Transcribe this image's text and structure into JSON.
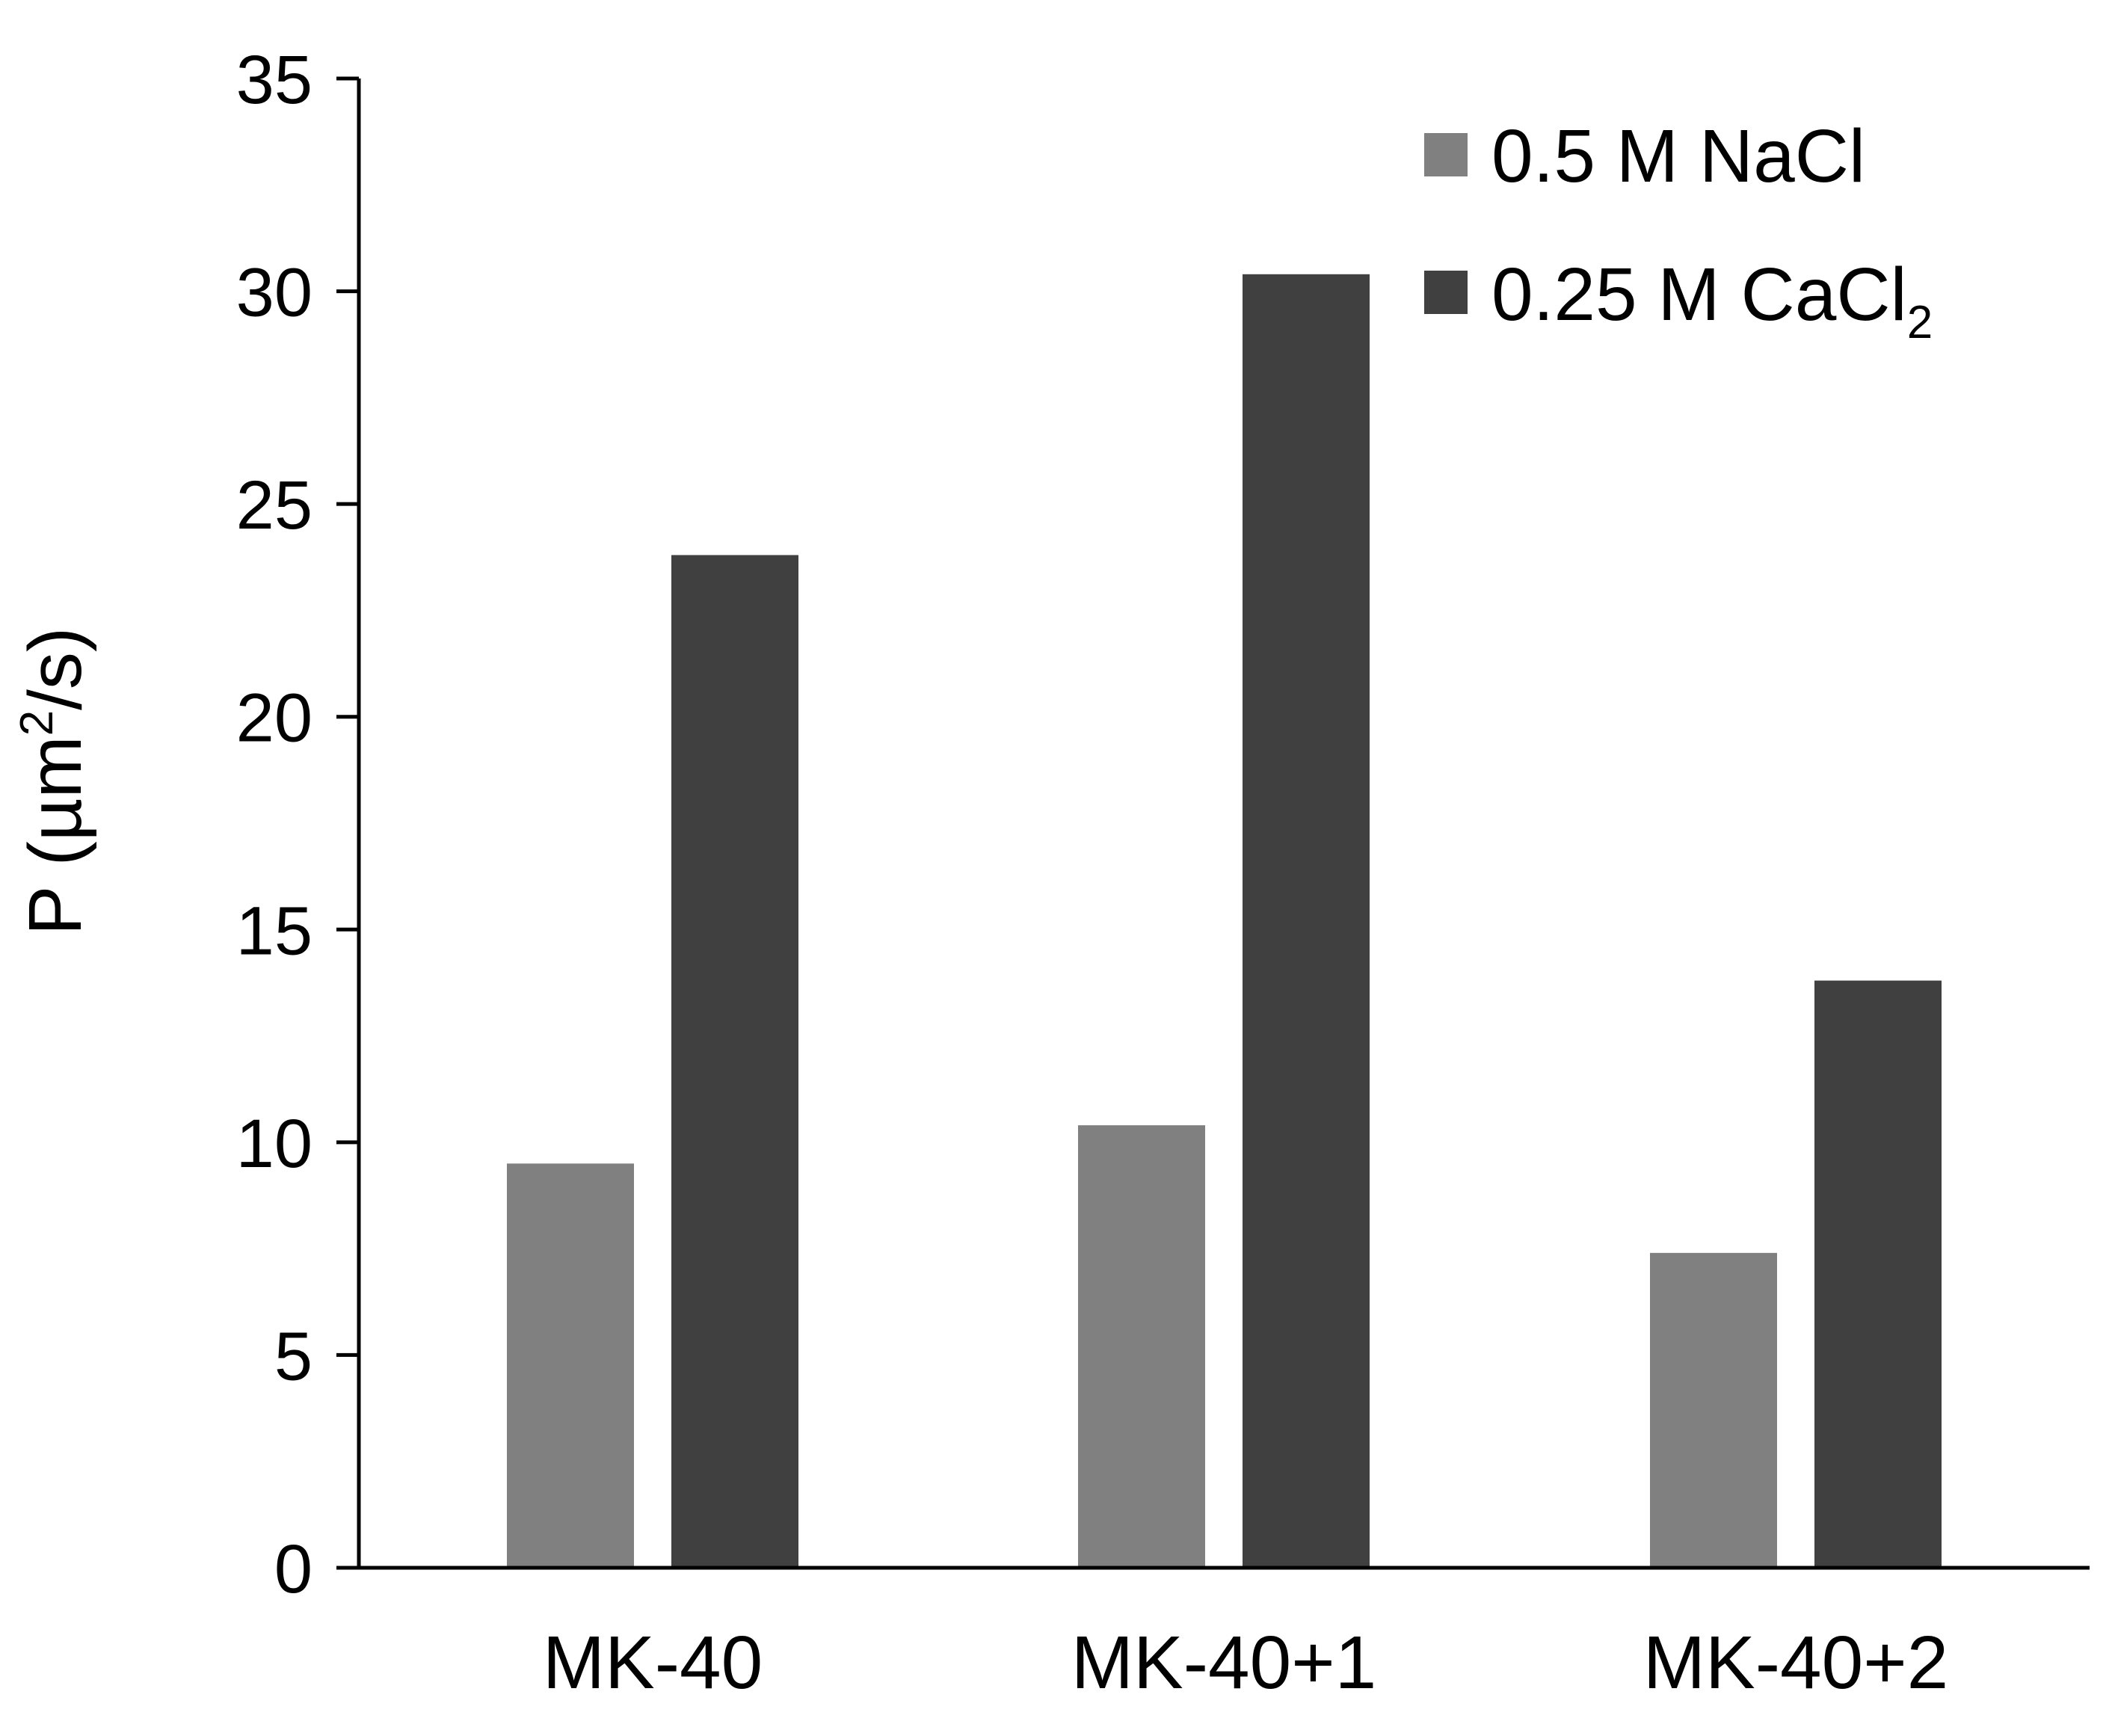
{
  "chart_data": {
    "type": "bar",
    "title": "",
    "xlabel": "",
    "ylabel": "P (µm²/s)",
    "ylabel_parts": {
      "main": "P (µm",
      "sup": "2",
      "tail": "/s)"
    },
    "categories": [
      "MK-40",
      "MK-40+1",
      "MK-40+2"
    ],
    "ylim": [
      0,
      35
    ],
    "yticks": [
      0,
      5,
      10,
      15,
      20,
      25,
      30,
      35
    ],
    "grid": false,
    "legend_position": "top-right",
    "series": [
      {
        "name": "0.5 M NaCl",
        "name_main": "0.5 M NaCl",
        "name_sub": "",
        "color": "#808080",
        "values": [
          9.5,
          10.4,
          7.4
        ]
      },
      {
        "name": "0.25 M CaCl₂",
        "name_main": "0.25 M CaCl",
        "name_sub": "2",
        "color": "#404040",
        "values": [
          23.8,
          30.4,
          13.8
        ]
      }
    ]
  }
}
